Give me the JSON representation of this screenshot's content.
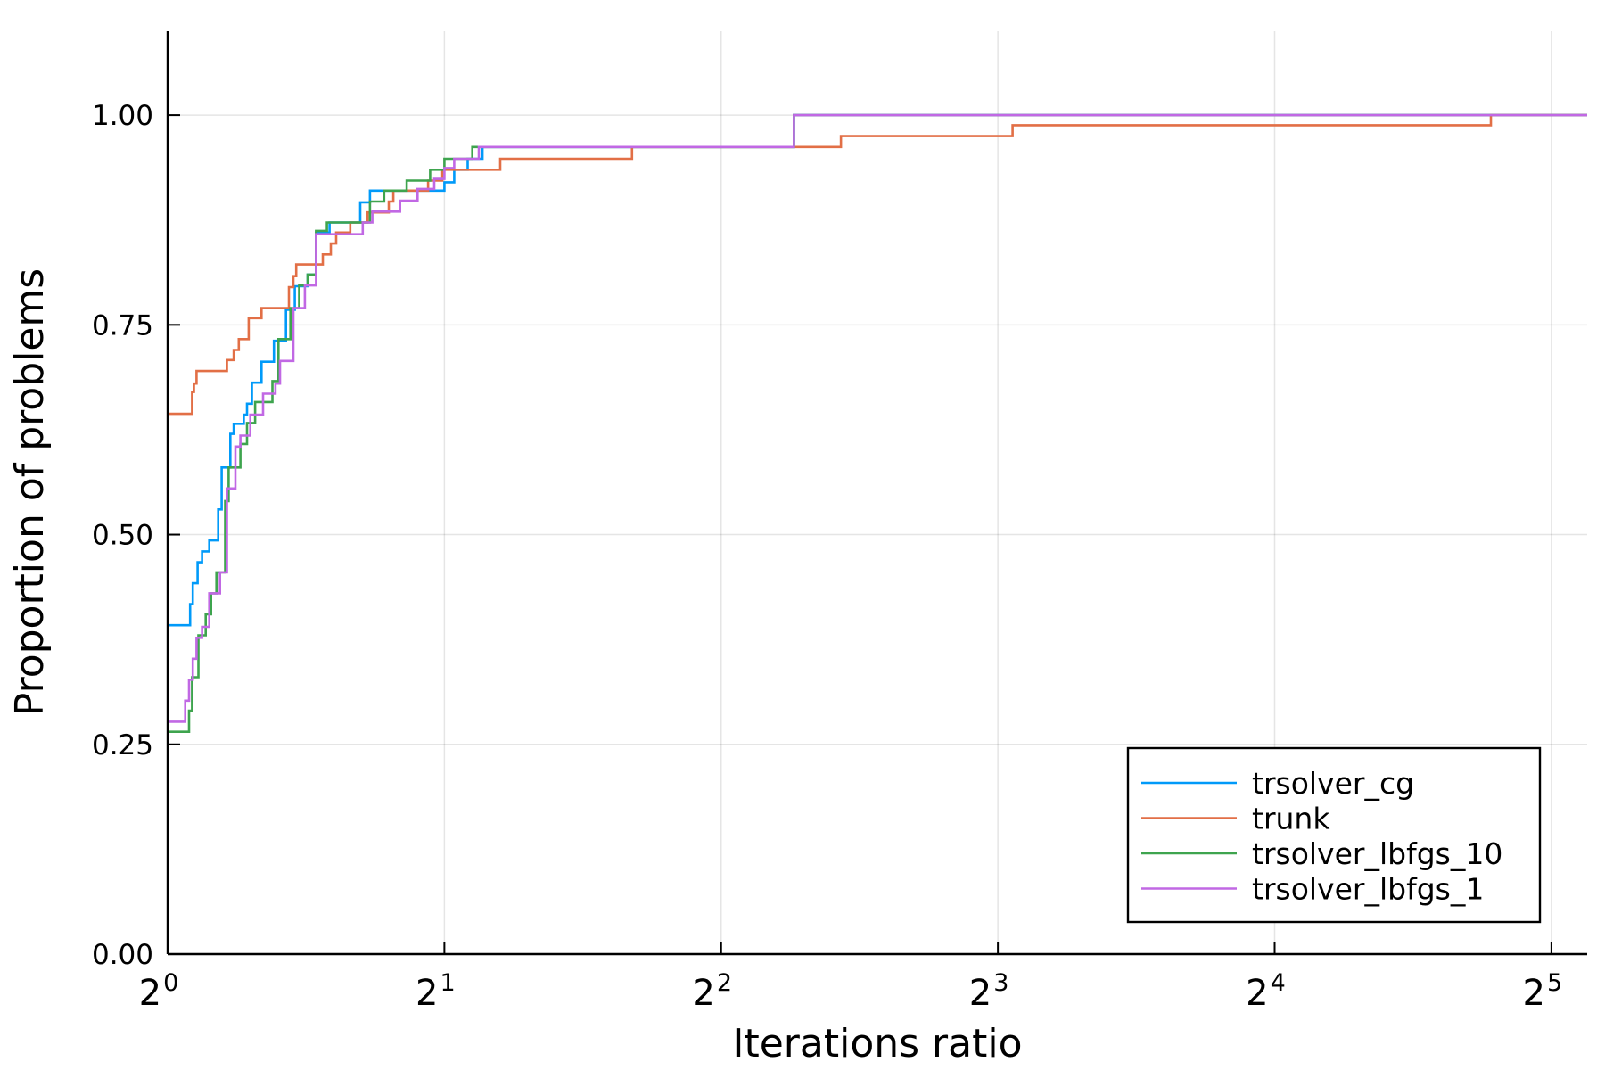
{
  "chart_data": {
    "type": "line",
    "title": "",
    "xlabel": "Iterations ratio",
    "ylabel": "Proportion of problems",
    "xscale": "log2",
    "xlim": [
      1,
      35
    ],
    "ylim": [
      0,
      1.1
    ],
    "xticks": [
      {
        "value": 1,
        "base": "2",
        "exp": "0"
      },
      {
        "value": 2,
        "base": "2",
        "exp": "1"
      },
      {
        "value": 4,
        "base": "2",
        "exp": "2"
      },
      {
        "value": 8,
        "base": "2",
        "exp": "3"
      },
      {
        "value": 16,
        "base": "2",
        "exp": "4"
      },
      {
        "value": 32,
        "base": "2",
        "exp": "5"
      }
    ],
    "yticks": [
      {
        "value": 0,
        "label": "0.00"
      },
      {
        "value": 0.25,
        "label": "0.25"
      },
      {
        "value": 0.5,
        "label": "0.50"
      },
      {
        "value": 0.75,
        "label": "0.75"
      },
      {
        "value": 1,
        "label": "1.00"
      }
    ],
    "grid": true,
    "legend_position": "bottom-right",
    "step_style": "post",
    "series": [
      {
        "name": "trsolver_cg",
        "color": "#009af9",
        "points": [
          [
            1.0,
            0.392
          ],
          [
            1.05,
            0.392
          ],
          [
            1.058,
            0.417
          ],
          [
            1.065,
            0.442
          ],
          [
            1.078,
            0.467
          ],
          [
            1.09,
            0.48
          ],
          [
            1.11,
            0.493
          ],
          [
            1.135,
            0.53
          ],
          [
            1.145,
            0.58
          ],
          [
            1.17,
            0.62
          ],
          [
            1.18,
            0.632
          ],
          [
            1.21,
            0.643
          ],
          [
            1.22,
            0.656
          ],
          [
            1.235,
            0.681
          ],
          [
            1.265,
            0.706
          ],
          [
            1.305,
            0.731
          ],
          [
            1.345,
            0.768
          ],
          [
            1.375,
            0.796
          ],
          [
            1.42,
            0.81
          ],
          [
            1.45,
            0.86
          ],
          [
            1.5,
            0.872
          ],
          [
            1.62,
            0.896
          ],
          [
            1.66,
            0.91
          ],
          [
            1.8,
            0.91
          ],
          [
            2.0,
            0.92
          ],
          [
            2.05,
            0.935
          ],
          [
            2.12,
            0.948
          ],
          [
            2.2,
            0.962
          ],
          [
            4.8,
            1.0
          ],
          [
            35.0,
            1.0
          ]
        ]
      },
      {
        "name": "trunk",
        "color": "#e26f46",
        "points": [
          [
            1.0,
            0.644
          ],
          [
            1.063,
            0.67
          ],
          [
            1.068,
            0.68
          ],
          [
            1.075,
            0.695
          ],
          [
            1.16,
            0.708
          ],
          [
            1.18,
            0.72
          ],
          [
            1.195,
            0.733
          ],
          [
            1.225,
            0.758
          ],
          [
            1.265,
            0.77
          ],
          [
            1.355,
            0.795
          ],
          [
            1.37,
            0.808
          ],
          [
            1.38,
            0.822
          ],
          [
            1.475,
            0.834
          ],
          [
            1.505,
            0.847
          ],
          [
            1.525,
            0.86
          ],
          [
            1.58,
            0.872
          ],
          [
            1.65,
            0.884
          ],
          [
            1.74,
            0.897
          ],
          [
            1.76,
            0.91
          ],
          [
            1.92,
            0.922
          ],
          [
            1.99,
            0.935
          ],
          [
            2.3,
            0.948
          ],
          [
            3.2,
            0.962
          ],
          [
            5.4,
            0.975
          ],
          [
            8.3,
            0.988
          ],
          [
            27.5,
            1.0
          ],
          [
            35.0,
            1.0
          ]
        ]
      },
      {
        "name": "trsolver_lbfgs_10",
        "color": "#3ea44e",
        "points": [
          [
            1.0,
            0.265
          ],
          [
            1.055,
            0.29
          ],
          [
            1.063,
            0.33
          ],
          [
            1.08,
            0.38
          ],
          [
            1.1,
            0.405
          ],
          [
            1.115,
            0.43
          ],
          [
            1.13,
            0.455
          ],
          [
            1.155,
            0.54
          ],
          [
            1.165,
            0.58
          ],
          [
            1.2,
            0.608
          ],
          [
            1.22,
            0.633
          ],
          [
            1.245,
            0.658
          ],
          [
            1.3,
            0.683
          ],
          [
            1.32,
            0.733
          ],
          [
            1.36,
            0.77
          ],
          [
            1.39,
            0.797
          ],
          [
            1.42,
            0.81
          ],
          [
            1.45,
            0.862
          ],
          [
            1.49,
            0.872
          ],
          [
            1.66,
            0.897
          ],
          [
            1.72,
            0.91
          ],
          [
            1.82,
            0.922
          ],
          [
            1.93,
            0.935
          ],
          [
            2.0,
            0.948
          ],
          [
            2.145,
            0.962
          ],
          [
            4.8,
            1.0
          ],
          [
            35.0,
            1.0
          ]
        ]
      },
      {
        "name": "trsolver_lbfgs_1",
        "color": "#c168e4",
        "points": [
          [
            1.0,
            0.277
          ],
          [
            1.045,
            0.302
          ],
          [
            1.055,
            0.327
          ],
          [
            1.065,
            0.352
          ],
          [
            1.075,
            0.377
          ],
          [
            1.09,
            0.39
          ],
          [
            1.11,
            0.43
          ],
          [
            1.14,
            0.455
          ],
          [
            1.16,
            0.555
          ],
          [
            1.185,
            0.605
          ],
          [
            1.2,
            0.618
          ],
          [
            1.23,
            0.643
          ],
          [
            1.27,
            0.668
          ],
          [
            1.31,
            0.68
          ],
          [
            1.325,
            0.707
          ],
          [
            1.37,
            0.77
          ],
          [
            1.41,
            0.797
          ],
          [
            1.45,
            0.858
          ],
          [
            1.63,
            0.872
          ],
          [
            1.67,
            0.885
          ],
          [
            1.79,
            0.898
          ],
          [
            1.87,
            0.912
          ],
          [
            1.95,
            0.924
          ],
          [
            2.0,
            0.937
          ],
          [
            2.05,
            0.948
          ],
          [
            2.18,
            0.962
          ],
          [
            4.8,
            1.0
          ],
          [
            35.0,
            1.0
          ]
        ]
      }
    ]
  }
}
